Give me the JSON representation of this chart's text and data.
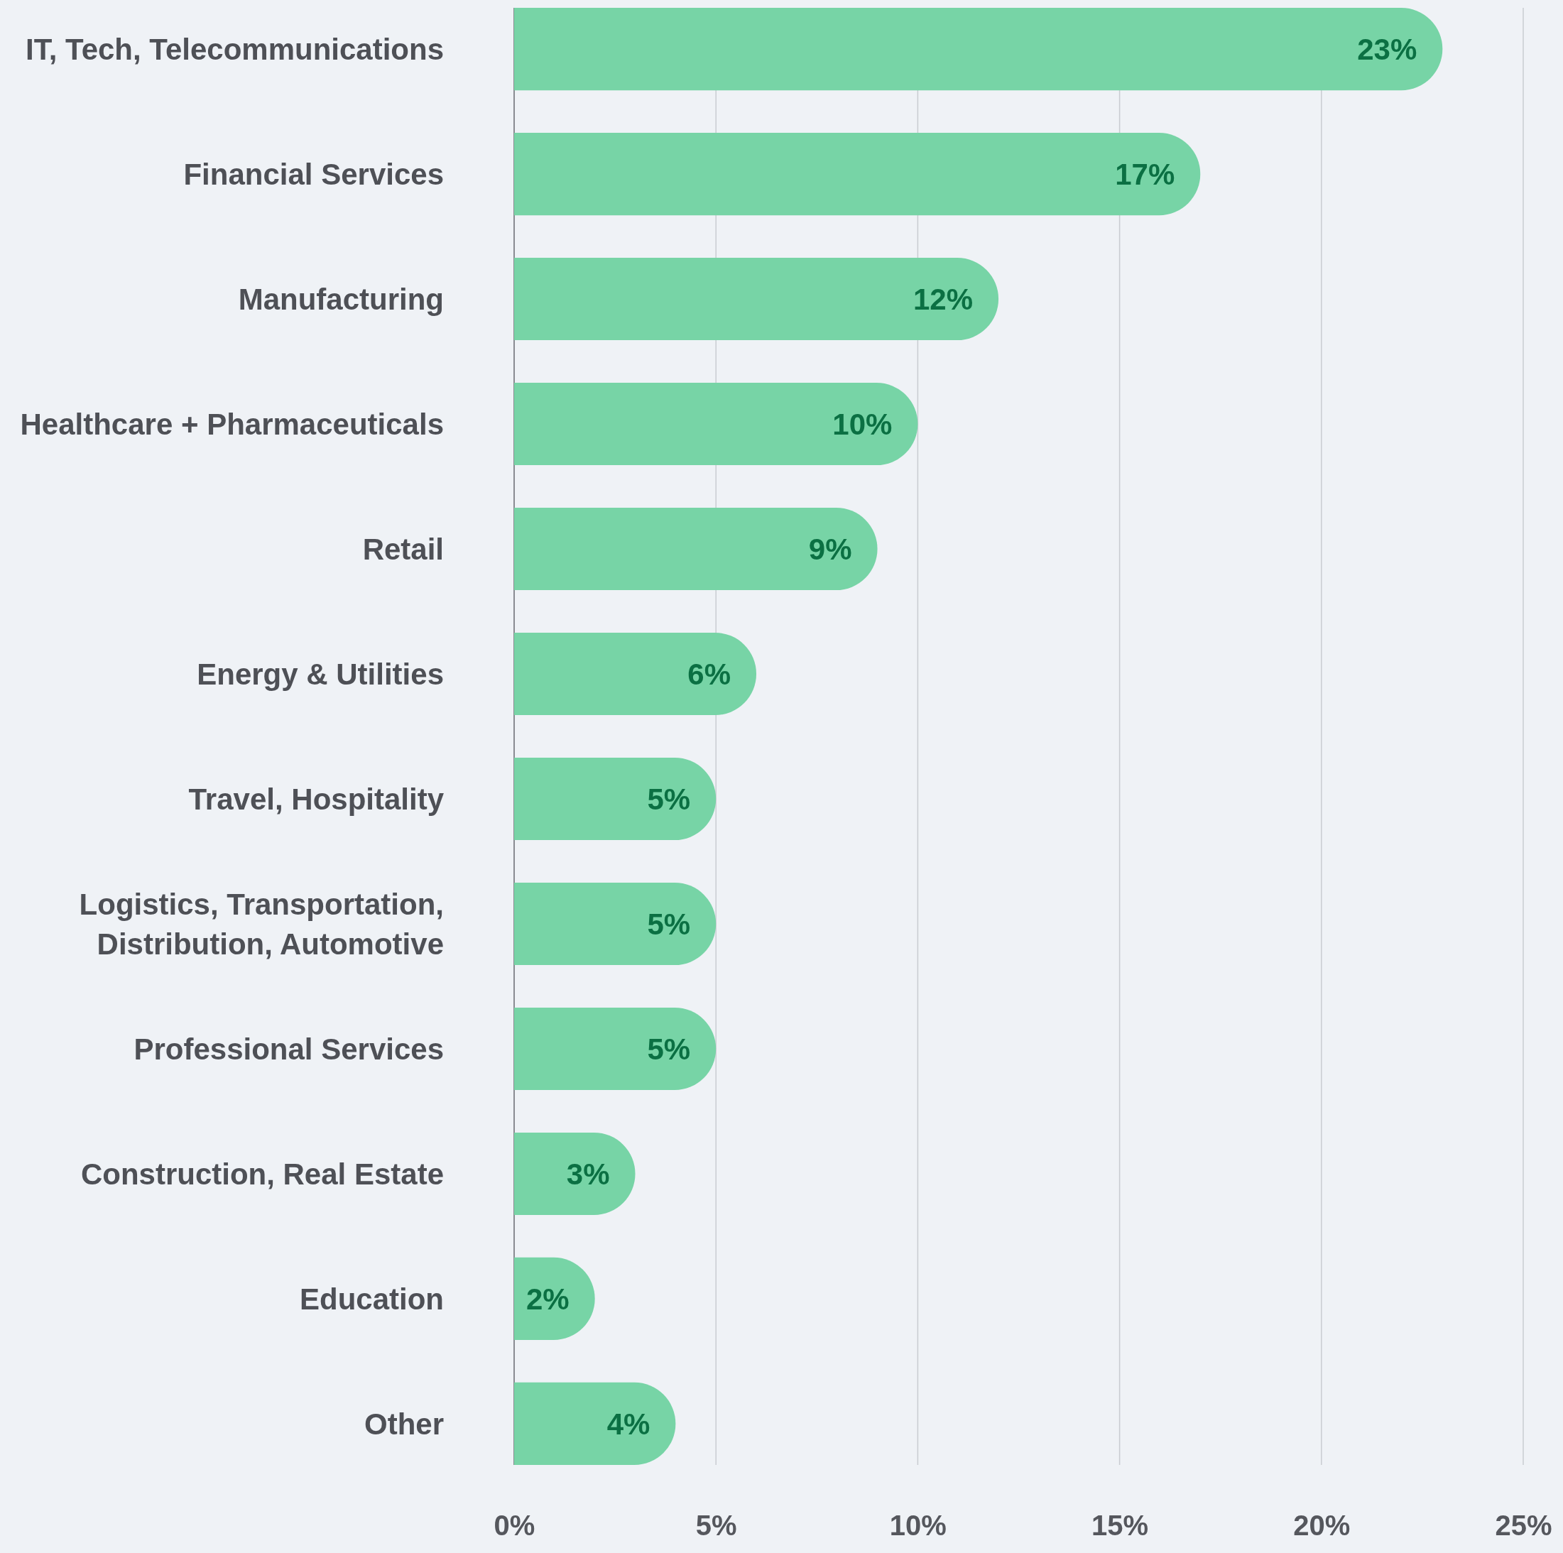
{
  "chart_data": {
    "type": "bar",
    "orientation": "horizontal",
    "categories": [
      "IT, Tech, Telecommunications",
      "Financial Services",
      "Manufacturing",
      "Healthcare + Pharmaceuticals",
      "Retail",
      "Energy & Utilities",
      "Travel, Hospitality",
      "Logistics, Transportation, Distribution, Automotive",
      "Professional Services",
      "Construction, Real Estate",
      "Education",
      "Other"
    ],
    "values": [
      23,
      17,
      12,
      10,
      9,
      6,
      5,
      5,
      5,
      3,
      2,
      4
    ],
    "value_labels": [
      "23%",
      "17%",
      "12%",
      "10%",
      "9%",
      "6%",
      "5%",
      "5%",
      "5%",
      "3%",
      "2%",
      "4%"
    ],
    "color": "#77d4a6",
    "xlim": [
      0,
      25
    ],
    "xticks": [
      {
        "value": 0,
        "label": "0%"
      },
      {
        "value": 5,
        "label": "5%"
      },
      {
        "value": 10,
        "label": "10%"
      },
      {
        "value": 15,
        "label": "15%"
      },
      {
        "value": 20,
        "label": "20%"
      },
      {
        "value": 25,
        "label": "25%"
      }
    ],
    "grid": "x"
  }
}
